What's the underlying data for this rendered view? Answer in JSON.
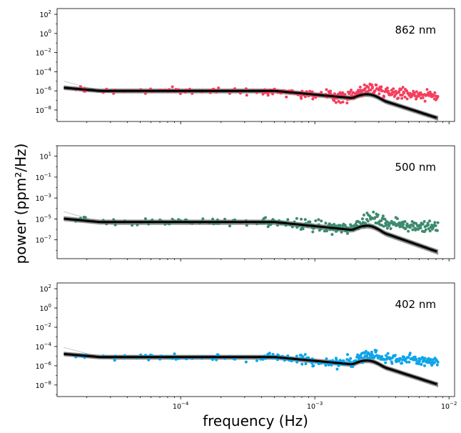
{
  "chart_data": {
    "type": "scatter",
    "xlabel": "frequency (Hz)",
    "ylabel": "power (ppm²/Hz)",
    "xscale": "log",
    "yscale": "log",
    "xlim": [
      1.2e-05,
      0.011
    ],
    "x_ticks": [
      {
        "value": 0.0001,
        "base": "10",
        "exp": "−4"
      },
      {
        "value": 0.001,
        "base": "10",
        "exp": "−3"
      },
      {
        "value": 0.01,
        "base": "10",
        "exp": "−2"
      }
    ],
    "grid": false,
    "panels": [
      {
        "label": "862 nm",
        "color": "#f43f5e",
        "ylim_log10": [
          -9.2,
          2.6
        ],
        "y_ticks": [
          {
            "value": 100,
            "base": "10",
            "exp": "2"
          },
          {
            "value": 1,
            "base": "10",
            "exp": "0"
          },
          {
            "value": 0.01,
            "base": "10",
            "exp": "−2"
          },
          {
            "value": 0.0001,
            "base": "10",
            "exp": "−4"
          },
          {
            "value": 1e-06,
            "base": "10",
            "exp": "−6"
          },
          {
            "value": 1e-08,
            "base": "10",
            "exp": "−8"
          }
        ],
        "baseline_log10": -6.0,
        "scatter_spread": 0.6
      },
      {
        "label": "500 nm",
        "color": "#3d8b6e",
        "ylim_log10": [
          -8.8,
          2.0
        ],
        "y_ticks": [
          {
            "value": 10,
            "base": "10",
            "exp": "1"
          },
          {
            "value": 0.1,
            "base": "10",
            "exp": "−1"
          },
          {
            "value": 0.001,
            "base": "10",
            "exp": "−3"
          },
          {
            "value": 1e-05,
            "base": "10",
            "exp": "−5"
          },
          {
            "value": 1e-07,
            "base": "10",
            "exp": "−7"
          }
        ],
        "baseline_log10": -5.3,
        "scatter_spread": 0.6
      },
      {
        "label": "402 nm",
        "color": "#0ea5e9",
        "ylim_log10": [
          -9.2,
          2.6
        ],
        "y_ticks": [
          {
            "value": 100,
            "base": "10",
            "exp": "2"
          },
          {
            "value": 1,
            "base": "10",
            "exp": "0"
          },
          {
            "value": 0.01,
            "base": "10",
            "exp": "−2"
          },
          {
            "value": 0.0001,
            "base": "10",
            "exp": "−4"
          },
          {
            "value": 1e-06,
            "base": "10",
            "exp": "−6"
          },
          {
            "value": 1e-08,
            "base": "10",
            "exp": "−8"
          }
        ],
        "baseline_log10": -5.1,
        "scatter_spread": 0.6
      }
    ]
  }
}
